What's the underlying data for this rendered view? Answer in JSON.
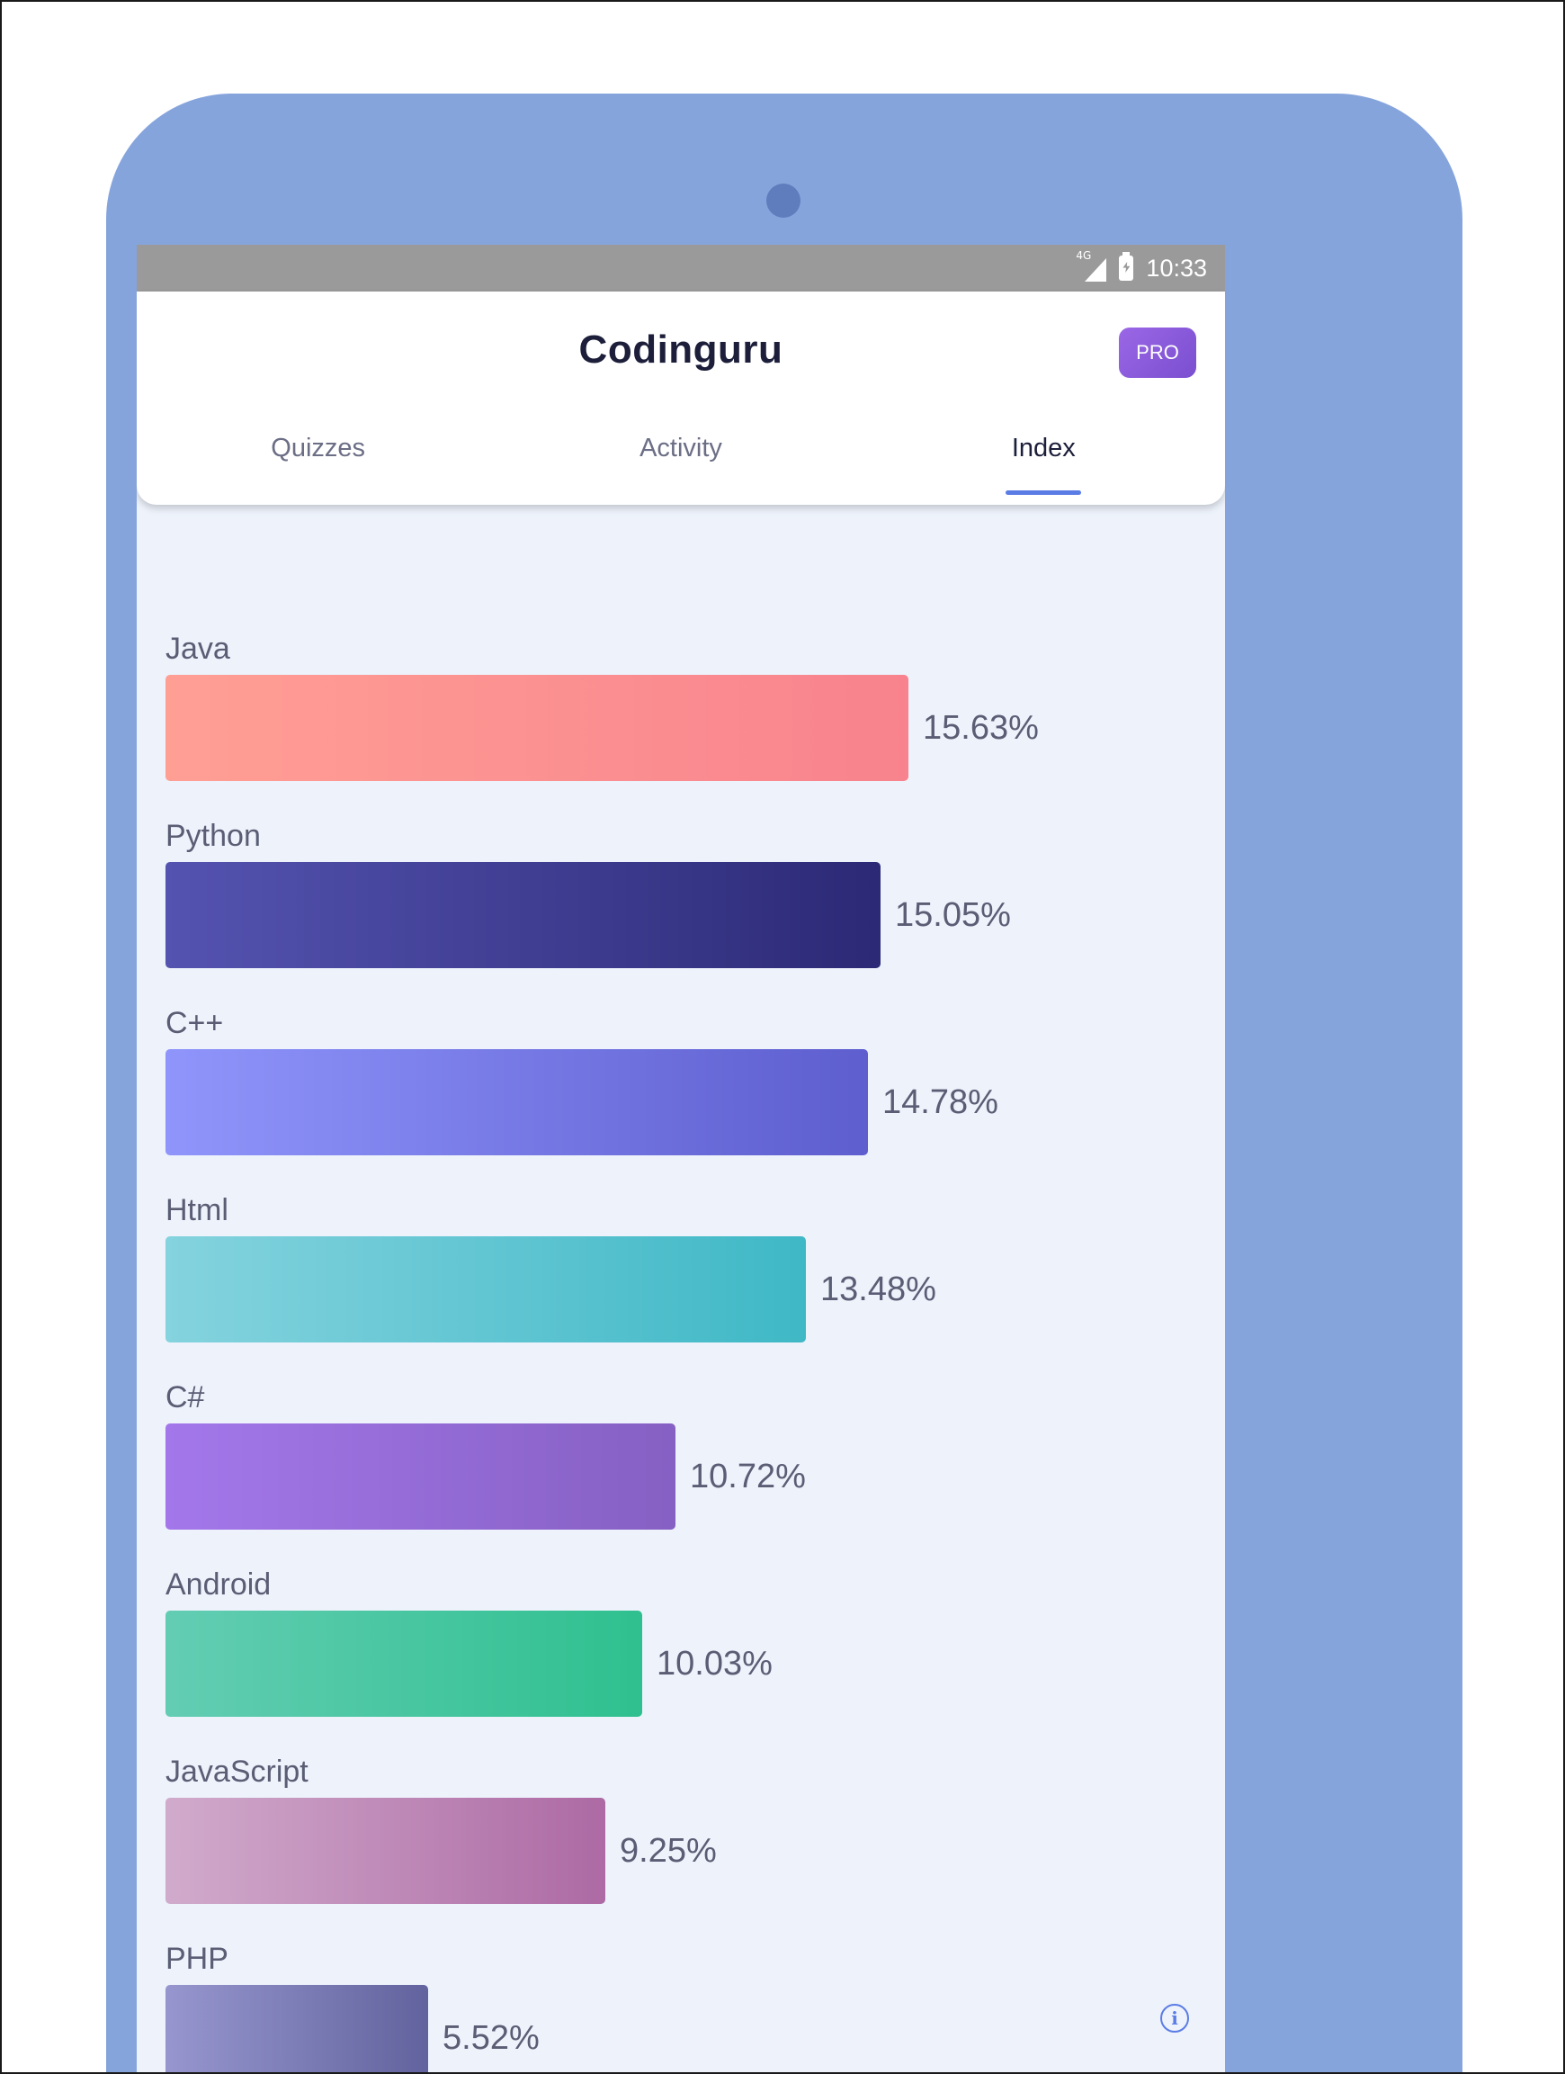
{
  "status_bar": {
    "time": "10:33",
    "network": "4G"
  },
  "app": {
    "title": "Codinguru",
    "pro_label": "PRO"
  },
  "tabs": [
    {
      "label": "Quizzes",
      "active": false
    },
    {
      "label": "Activity",
      "active": false
    },
    {
      "label": "Index",
      "active": true
    }
  ],
  "chart_data": {
    "type": "bar",
    "orientation": "horizontal",
    "categories": [
      "Java",
      "Python",
      "C++",
      "Html",
      "C#",
      "Android",
      "JavaScript",
      "PHP"
    ],
    "values": [
      15.63,
      15.05,
      14.78,
      13.48,
      10.72,
      10.03,
      9.25,
      5.52
    ],
    "value_labels": [
      "15.63%",
      "15.05%",
      "14.78%",
      "13.48%",
      "10.72%",
      "10.03%",
      "9.25%",
      "5.52%"
    ],
    "unit": "%",
    "gradients": [
      [
        "#ff9f94",
        "#f8838e"
      ],
      [
        "#5453b0",
        "#2c2a76"
      ],
      [
        "#8f95fb",
        "#5e5ecf"
      ],
      [
        "#84d3de",
        "#3fb8c6"
      ],
      [
        "#a377ea",
        "#8660c3"
      ],
      [
        "#63cdb3",
        "#2fc08f"
      ],
      [
        "#d1abcc",
        "#ad6aa4"
      ],
      [
        "#9796cf",
        "#62639e"
      ]
    ]
  },
  "icons": {
    "info": "info-icon"
  }
}
